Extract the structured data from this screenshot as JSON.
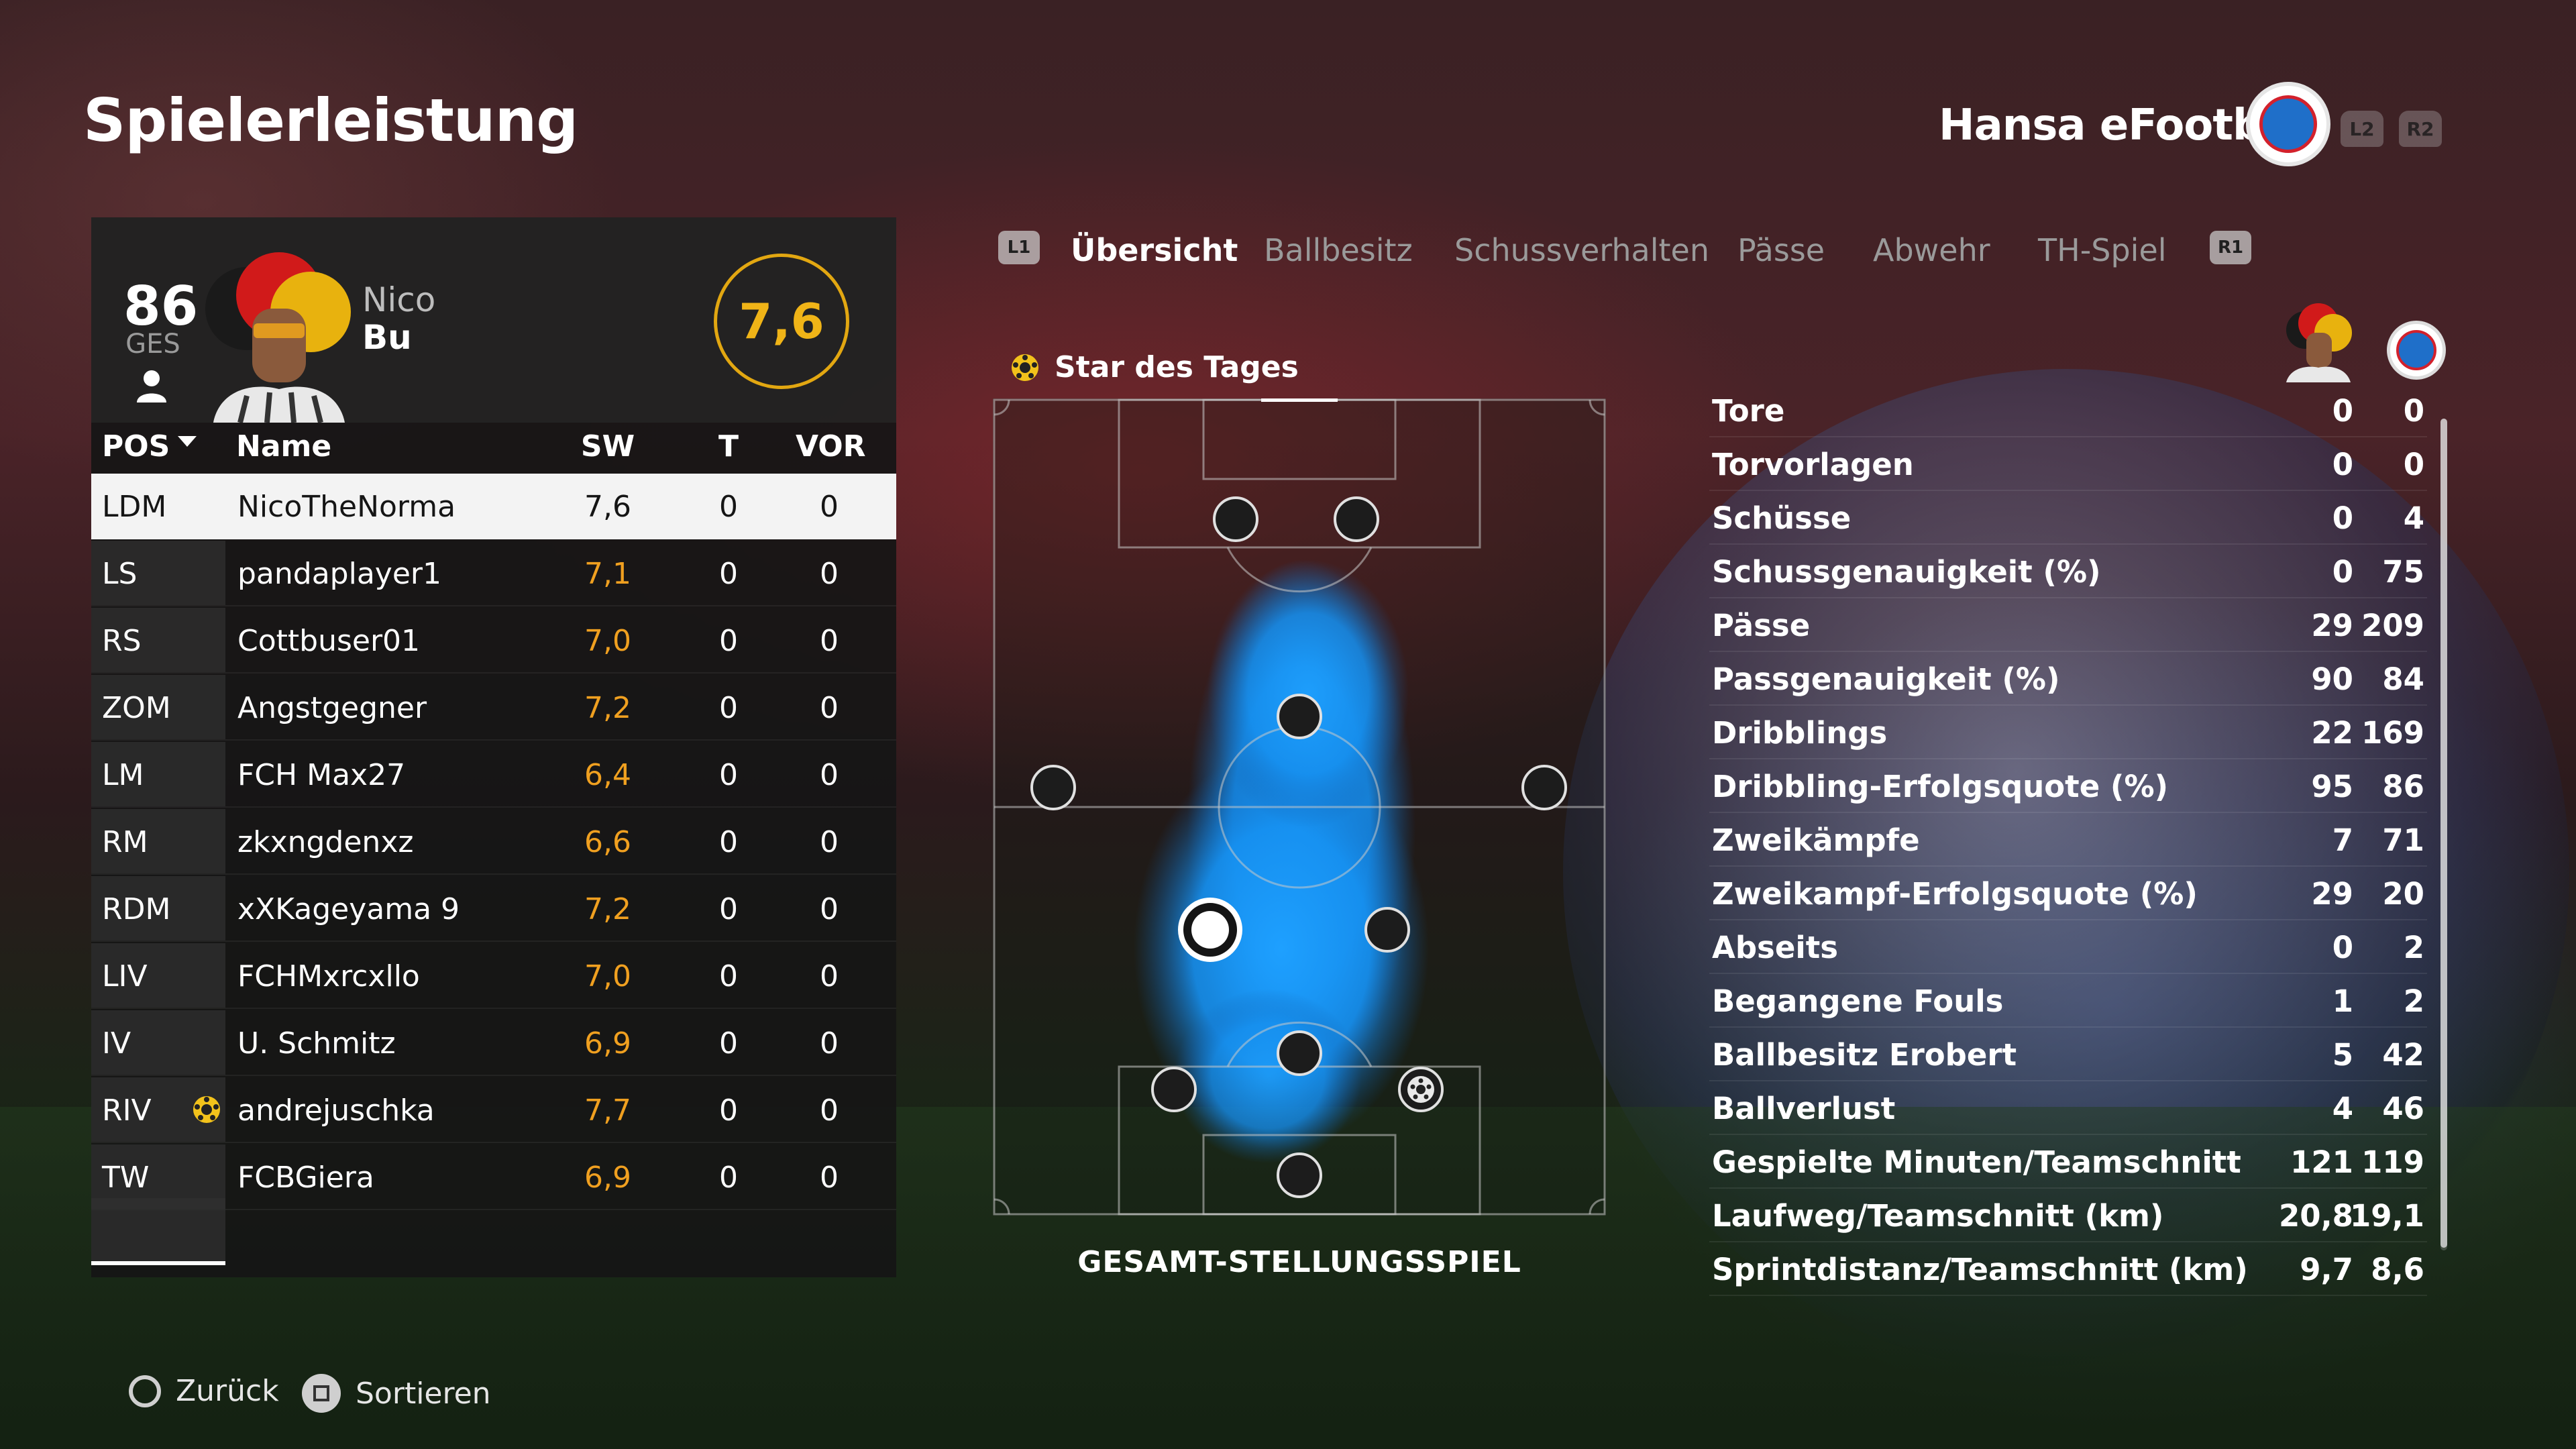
{
  "header": {
    "title": "Spielerleistung",
    "team_name": "Hansa eFootball",
    "trigger_left": "L2",
    "trigger_right": "R2"
  },
  "player": {
    "overall": "86",
    "overall_label": "GES",
    "first_name": "Nico",
    "last_name": "Bu",
    "match_rating": "7,6"
  },
  "table": {
    "headers": {
      "pos": "POS",
      "name": "Name",
      "sw": "SW",
      "t": "T",
      "vor": "VOR"
    },
    "rows": [
      {
        "pos": "LDM",
        "name": "NicoTheNorma",
        "sw": "7,6",
        "t": "0",
        "vor": "0",
        "selected": true
      },
      {
        "pos": "LS",
        "name": "pandaplayer1",
        "sw": "7,1",
        "t": "0",
        "vor": "0"
      },
      {
        "pos": "RS",
        "name": "Cottbuser01",
        "sw": "7,0",
        "t": "0",
        "vor": "0"
      },
      {
        "pos": "ZOM",
        "name": "Angstgegner",
        "sw": "7,2",
        "t": "0",
        "vor": "0"
      },
      {
        "pos": "LM",
        "name": "FCH Max27",
        "sw": "6,4",
        "t": "0",
        "vor": "0"
      },
      {
        "pos": "RM",
        "name": "zkxngdenxz",
        "sw": "6,6",
        "t": "0",
        "vor": "0"
      },
      {
        "pos": "RDM",
        "name": "xXKageyama 9",
        "sw": "7,2",
        "t": "0",
        "vor": "0"
      },
      {
        "pos": "LIV",
        "name": "FCHMxrcxllo",
        "sw": "7,0",
        "t": "0",
        "vor": "0"
      },
      {
        "pos": "IV",
        "name": "U. Schmitz",
        "sw": "6,9",
        "t": "0",
        "vor": "0"
      },
      {
        "pos": "RIV",
        "name": "andrejuschka",
        "sw": "7,7",
        "t": "0",
        "vor": "0",
        "star": true
      },
      {
        "pos": "TW",
        "name": "FCBGiera",
        "sw": "6,9",
        "t": "0",
        "vor": "0"
      }
    ]
  },
  "tabs": {
    "left_button": "L1",
    "right_button": "R1",
    "items": [
      "Übersicht",
      "Ballbesitz",
      "Schussverhalten",
      "Pässe",
      "Abwehr",
      "TH-Spiel"
    ],
    "active_index": 0
  },
  "pitch": {
    "star_label": "Star des Tages",
    "caption": "GESAMT-STELLUNGSSPIEL"
  },
  "stats": [
    {
      "label": "Tore",
      "player": "0",
      "team": "0"
    },
    {
      "label": "Torvorlagen",
      "player": "0",
      "team": "0"
    },
    {
      "label": "Schüsse",
      "player": "0",
      "team": "4"
    },
    {
      "label": "Schussgenauigkeit (%)",
      "player": "0",
      "team": "75"
    },
    {
      "label": "Pässe",
      "player": "29",
      "team": "209"
    },
    {
      "label": "Passgenauigkeit (%)",
      "player": "90",
      "team": "84"
    },
    {
      "label": "Dribblings",
      "player": "22",
      "team": "169"
    },
    {
      "label": "Dribbling-Erfolgsquote (%)",
      "player": "95",
      "team": "86"
    },
    {
      "label": "Zweikämpfe",
      "player": "7",
      "team": "71"
    },
    {
      "label": "Zweikampf-Erfolgsquote (%)",
      "player": "29",
      "team": "20"
    },
    {
      "label": "Abseits",
      "player": "0",
      "team": "2"
    },
    {
      "label": "Begangene Fouls",
      "player": "1",
      "team": "2"
    },
    {
      "label": "Ballbesitz Erobert",
      "player": "5",
      "team": "42"
    },
    {
      "label": "Ballverlust",
      "player": "4",
      "team": "46"
    },
    {
      "label": "Gespielte Minuten/Teamschnitt",
      "player": "121",
      "team": "119"
    },
    {
      "label": "Laufweg/Teamschnitt (km)",
      "player": "20,8",
      "team": "19,1"
    },
    {
      "label": "Sprintdistanz/Teamschnitt (km)",
      "player": "9,7",
      "team": "8,6"
    }
  ],
  "footer": {
    "back_label": "Zurück",
    "sort_label": "Sortieren"
  },
  "colors": {
    "accent_gold": "#f0b417",
    "rating_orange": "#f0a020",
    "heatmap_blue": "#1e9bff"
  }
}
